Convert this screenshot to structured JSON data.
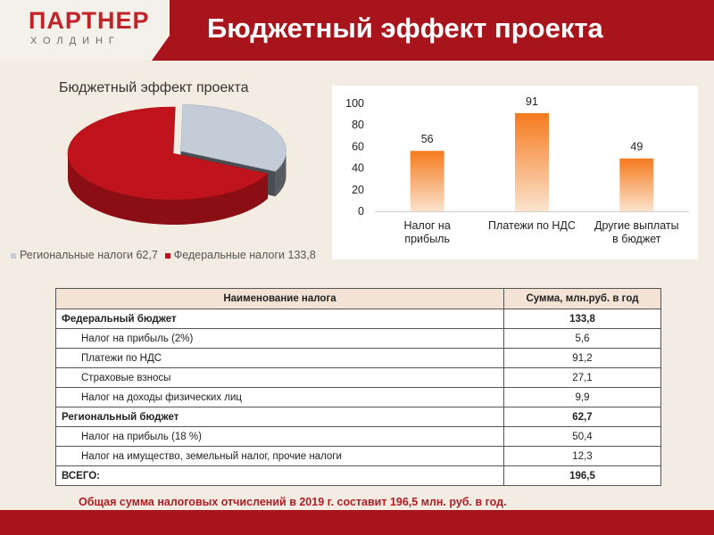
{
  "header": {
    "logo_title": "ПАРТНЕР",
    "logo_subtitle": "ХОЛДИНГ",
    "title": "Бюджетный эффект проекта"
  },
  "colors": {
    "brand_red": "#a8141b",
    "pie_regional": "#c4ccd8",
    "pie_federal": "#c0141c",
    "bar": "#f57a1e"
  },
  "chart_data": [
    {
      "type": "pie",
      "title": "Бюджетный эффект проекта",
      "three_d": true,
      "legend_position": "bottom",
      "slices": [
        {
          "label": "Региональные налоги",
          "value": 62.7,
          "legend_text": "Региональные налоги 62,7",
          "color": "#c4ccd8"
        },
        {
          "label": "Федеральные налоги",
          "value": 133.8,
          "legend_text": "Федеральные налоги 133,8",
          "color": "#c0141c"
        }
      ]
    },
    {
      "type": "bar",
      "categories": [
        [
          "Налог на",
          "прибыль"
        ],
        [
          "Платежи по НДС"
        ],
        [
          "Другие выплаты",
          "в бюджет"
        ]
      ],
      "values": [
        56,
        91,
        49
      ],
      "value_labels": [
        "56",
        "91",
        "49"
      ],
      "ylim": [
        0,
        100
      ],
      "yticks": [
        "0",
        "20",
        "40",
        "60",
        "80",
        "100"
      ],
      "grid": false,
      "color": "#f57a1e"
    }
  ],
  "table": {
    "headers": [
      "Наименование налога",
      "Сумма, млн.руб. в год"
    ],
    "rows": [
      {
        "kind": "grp",
        "name": "Федеральный бюджет",
        "value": "133,8"
      },
      {
        "kind": "item",
        "name": "Налог на прибыль (2%)",
        "value": "5,6"
      },
      {
        "kind": "item",
        "name": "Платежи по НДС",
        "value": "91,2"
      },
      {
        "kind": "item",
        "name": "Страховые взносы",
        "value": "27,1"
      },
      {
        "kind": "item",
        "name": "Налог на доходы физических лиц",
        "value": "9,9"
      },
      {
        "kind": "grp",
        "name": "Региональный бюджет",
        "value": "62,7"
      },
      {
        "kind": "item",
        "name": "Налог на прибыль (18 %)",
        "value": "50,4"
      },
      {
        "kind": "item",
        "name": "Налог на имущество, земельный налог, прочие налоги",
        "value": "12,3"
      },
      {
        "kind": "total",
        "name": "ВСЕГО:",
        "value": "196,5"
      }
    ]
  },
  "footer": {
    "note": "Общая сумма налоговых отчислений в 2019 г. составит 196,5 млн. руб. в год."
  }
}
